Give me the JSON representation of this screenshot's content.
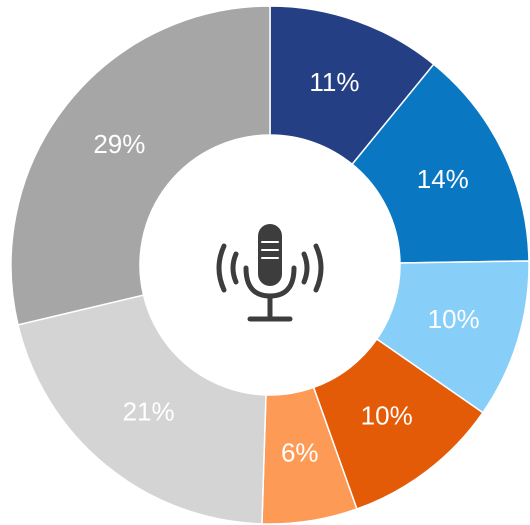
{
  "chart_data": {
    "type": "donut",
    "values": [
      11,
      14,
      10,
      10,
      6,
      21,
      29
    ],
    "value_labels": [
      "11%",
      "14%",
      "10%",
      "10%",
      "6%",
      "21%",
      "29%"
    ],
    "colors": [
      "#253f85",
      "#0a77c2",
      "#87cff9",
      "#e35b06",
      "#fd9a56",
      "#d4d4d4",
      "#a6a6a6"
    ]
  }
}
